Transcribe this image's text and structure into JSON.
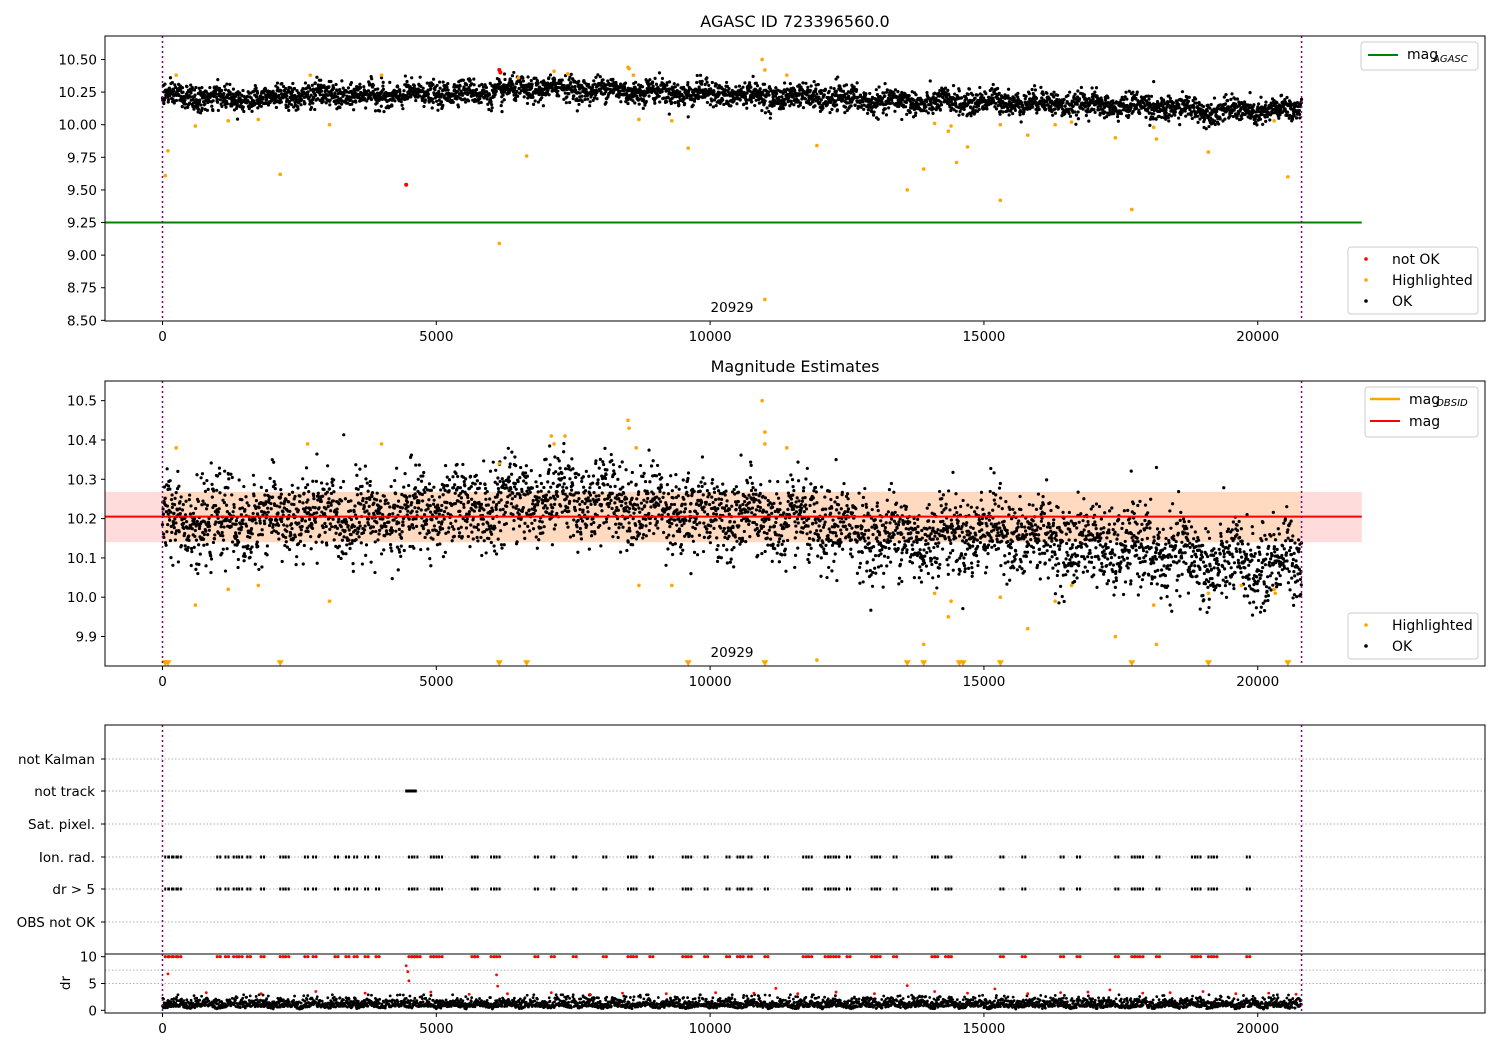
{
  "colors": {
    "ok": "#000000",
    "highlighted": "#ffa500",
    "not_ok": "#ff0000",
    "agasc_line": "#008000",
    "mag_line": "#ff0000",
    "obsid_line": "#ffa500",
    "band": "#ffc0c0",
    "obs_boundary": "#800080",
    "grid": "#b0b0b0"
  },
  "chart_data": [
    {
      "type": "scatter",
      "title": "AGASC ID 723396560.0",
      "xlim": [
        -1050,
        24150
      ],
      "ylim": [
        8.495,
        10.68
      ],
      "x_ticks": [
        0,
        5000,
        10000,
        15000,
        20000
      ],
      "y_ticks": [
        8.5,
        8.75,
        9.0,
        9.25,
        9.5,
        9.75,
        10.0,
        10.25,
        10.5
      ],
      "obs_boundaries": [
        0,
        20800
      ],
      "annotation": {
        "text": "20929",
        "x": 10400
      },
      "lines": [
        {
          "name": "mag",
          "subscript": "AGASC",
          "y": 9.25,
          "x_range": [
            -1050,
            21900
          ]
        }
      ],
      "legend_upper": [
        {
          "label": "mag",
          "subscript": "AGASC"
        }
      ],
      "legend_lower": [
        {
          "label": "not OK",
          "series": "not_ok"
        },
        {
          "label": "Highlighted",
          "series": "highlighted"
        },
        {
          "label": "OK",
          "series": "ok"
        }
      ],
      "trend_ok": [
        [
          0,
          10.22
        ],
        [
          1000,
          10.2
        ],
        [
          2000,
          10.21
        ],
        [
          3000,
          10.23
        ],
        [
          4000,
          10.22
        ],
        [
          5000,
          10.24
        ],
        [
          6000,
          10.25
        ],
        [
          7000,
          10.28
        ],
        [
          8000,
          10.27
        ],
        [
          9000,
          10.25
        ],
        [
          10000,
          10.24
        ],
        [
          11000,
          10.22
        ],
        [
          12000,
          10.21
        ],
        [
          13000,
          10.18
        ],
        [
          14000,
          10.17
        ],
        [
          15000,
          10.18
        ],
        [
          16000,
          10.17
        ],
        [
          17000,
          10.15
        ],
        [
          18000,
          10.14
        ],
        [
          19000,
          10.11
        ],
        [
          20000,
          10.1
        ],
        [
          20800,
          10.12
        ]
      ],
      "ok_outliers": [
        [
          4000,
          10.36
        ],
        [
          6200,
          10.1
        ],
        [
          9600,
          10.06
        ],
        [
          11100,
          10.05
        ],
        [
          11900,
          10.33
        ],
        [
          12300,
          10.35
        ],
        [
          13500,
          10.04
        ],
        [
          18100,
          10.33
        ]
      ],
      "highlighted": [
        [
          50,
          9.61
        ],
        [
          100,
          9.8
        ],
        [
          250,
          10.38
        ],
        [
          600,
          9.99
        ],
        [
          1200,
          10.03
        ],
        [
          1750,
          10.04
        ],
        [
          2150,
          9.62
        ],
        [
          2700,
          10.38
        ],
        [
          3050,
          10.0
        ],
        [
          4000,
          10.38
        ],
        [
          6150,
          9.09
        ],
        [
          6500,
          10.36
        ],
        [
          6650,
          9.76
        ],
        [
          7150,
          10.41
        ],
        [
          7400,
          10.39
        ],
        [
          8500,
          10.44
        ],
        [
          8520,
          10.43
        ],
        [
          8600,
          10.38
        ],
        [
          8700,
          10.04
        ],
        [
          9300,
          10.03
        ],
        [
          9600,
          9.82
        ],
        [
          10950,
          10.5
        ],
        [
          11000,
          10.42
        ],
        [
          11000,
          8.66
        ],
        [
          11400,
          10.38
        ],
        [
          11950,
          9.84
        ],
        [
          13600,
          9.5
        ],
        [
          13900,
          9.66
        ],
        [
          14100,
          10.01
        ],
        [
          14350,
          9.95
        ],
        [
          14400,
          9.99
        ],
        [
          14500,
          9.71
        ],
        [
          14700,
          9.83
        ],
        [
          15300,
          9.42
        ],
        [
          15300,
          10.0
        ],
        [
          15800,
          9.92
        ],
        [
          16300,
          10.0
        ],
        [
          16600,
          10.02
        ],
        [
          17400,
          9.9
        ],
        [
          17700,
          9.35
        ],
        [
          18100,
          9.98
        ],
        [
          18150,
          9.89
        ],
        [
          19100,
          9.79
        ],
        [
          20300,
          10.03
        ],
        [
          20550,
          9.6
        ]
      ],
      "not_ok": [
        [
          4450,
          9.54
        ],
        [
          6150,
          10.42
        ],
        [
          6170,
          10.4
        ]
      ]
    },
    {
      "type": "scatter",
      "title": "Magnitude Estimates",
      "xlim": [
        -1050,
        24150
      ],
      "ylim": [
        9.825,
        10.55
      ],
      "x_ticks": [
        0,
        5000,
        10000,
        15000,
        20000
      ],
      "y_ticks": [
        9.9,
        10.0,
        10.1,
        10.2,
        10.3,
        10.4,
        10.5
      ],
      "obs_boundaries": [
        0,
        20800
      ],
      "annotation": {
        "text": "20929",
        "x": 10400
      },
      "lines": [
        {
          "name": "mag",
          "subscript": "OBSID",
          "y_const": null
        },
        {
          "name": "mag",
          "y": 10.205,
          "x_range": [
            -1050,
            21900
          ]
        }
      ],
      "band": {
        "y_low": 10.14,
        "y_high": 10.268,
        "x_range": [
          -1050,
          21900
        ]
      },
      "legend_upper": [
        {
          "label": "mag",
          "subscript": "OBSID",
          "series": "obsid_line"
        },
        {
          "label": "mag",
          "series": "mag_line"
        }
      ],
      "legend_lower": [
        {
          "label": "Highlighted",
          "series": "highlighted"
        },
        {
          "label": "OK",
          "series": "ok"
        }
      ],
      "trend_ok": [
        [
          0,
          10.2
        ],
        [
          1000,
          10.19
        ],
        [
          2000,
          10.2
        ],
        [
          3000,
          10.21
        ],
        [
          4000,
          10.2
        ],
        [
          5000,
          10.22
        ],
        [
          6000,
          10.23
        ],
        [
          7000,
          10.26
        ],
        [
          8000,
          10.25
        ],
        [
          9000,
          10.23
        ],
        [
          10000,
          10.21
        ],
        [
          11000,
          10.2
        ],
        [
          12000,
          10.18
        ],
        [
          13000,
          10.16
        ],
        [
          14000,
          10.15
        ],
        [
          15000,
          10.17
        ],
        [
          16000,
          10.15
        ],
        [
          17000,
          10.13
        ],
        [
          18000,
          10.12
        ],
        [
          19000,
          10.09
        ],
        [
          20000,
          10.08
        ],
        [
          20800,
          10.1
        ]
      ],
      "ok_outliers": [
        [
          4900,
          10.08
        ],
        [
          6100,
          10.11
        ],
        [
          9650,
          10.06
        ],
        [
          12300,
          10.35
        ],
        [
          13500,
          10.04
        ],
        [
          18150,
          10.33
        ]
      ],
      "highlighted": [
        [
          250,
          10.38
        ],
        [
          600,
          9.98
        ],
        [
          1200,
          10.02
        ],
        [
          1750,
          10.03
        ],
        [
          2650,
          10.39
        ],
        [
          3050,
          9.99
        ],
        [
          4000,
          10.39
        ],
        [
          6150,
          10.34
        ],
        [
          7100,
          10.41
        ],
        [
          7150,
          10.39
        ],
        [
          7350,
          10.41
        ],
        [
          8500,
          10.45
        ],
        [
          8520,
          10.43
        ],
        [
          8650,
          10.38
        ],
        [
          8700,
          10.03
        ],
        [
          9300,
          10.03
        ],
        [
          10950,
          10.5
        ],
        [
          11000,
          10.42
        ],
        [
          11000,
          10.39
        ],
        [
          11400,
          10.38
        ],
        [
          11950,
          9.84
        ],
        [
          13900,
          9.88
        ],
        [
          14100,
          10.01
        ],
        [
          14350,
          9.95
        ],
        [
          14400,
          9.99
        ],
        [
          15300,
          10.0
        ],
        [
          15800,
          9.92
        ],
        [
          16300,
          9.99
        ],
        [
          16600,
          10.03
        ],
        [
          17400,
          9.9
        ],
        [
          18100,
          9.98
        ],
        [
          18150,
          9.88
        ],
        [
          19100,
          10.01
        ],
        [
          19700,
          10.03
        ],
        [
          20300,
          10.02
        ],
        [
          20320,
          10.01
        ]
      ],
      "off_scale_markers": [
        [
          50,
          9.832
        ],
        [
          100,
          9.832
        ],
        [
          2150,
          9.832
        ],
        [
          6150,
          9.832
        ],
        [
          6650,
          9.832
        ],
        [
          9600,
          9.832
        ],
        [
          11000,
          9.832
        ],
        [
          13600,
          9.832
        ],
        [
          13900,
          9.832
        ],
        [
          14550,
          9.832
        ],
        [
          14620,
          9.832
        ],
        [
          15300,
          9.832
        ],
        [
          17700,
          9.832
        ],
        [
          19100,
          9.832
        ],
        [
          20550,
          9.832
        ]
      ]
    },
    {
      "type": "scatter",
      "title": "",
      "xlim": [
        -1050,
        24150
      ],
      "categories": [
        "OBS not OK",
        "dr > 5",
        "Ion. rad.",
        "Sat. pixel.",
        "not track",
        "not Kalman"
      ],
      "obs_boundaries": [
        0,
        20800
      ],
      "flag_x": {
        "Ion. rad.": [
          50,
          120,
          200,
          280,
          1000,
          1150,
          1300,
          1400,
          1550,
          1800,
          2150,
          2250,
          2600,
          2750,
          3150,
          3350,
          3500,
          3700,
          3900,
          4500,
          4600,
          4900,
          4950,
          5050,
          5650,
          5700,
          6000,
          6100,
          6800,
          7100,
          7500,
          8050,
          8500,
          8600,
          8900,
          9500,
          9600,
          9900,
          10300,
          10500,
          10550,
          10700,
          11000,
          11700,
          11800,
          12100,
          12200,
          12300,
          12500,
          12950,
          13050,
          13350,
          14050,
          14100,
          14300,
          14350,
          15300,
          15700,
          16400,
          16700,
          17400,
          17700,
          17750,
          17850,
          18150,
          18800,
          18900,
          19100,
          19200,
          19800
        ],
        "dr > 5": [
          50,
          120,
          200,
          280,
          1000,
          1150,
          1300,
          1400,
          1550,
          1800,
          2150,
          2250,
          2600,
          2750,
          3150,
          3350,
          3500,
          3700,
          3900,
          4500,
          4600,
          4900,
          4950,
          5050,
          5650,
          5700,
          6000,
          6100,
          6800,
          7100,
          7500,
          8050,
          8500,
          8600,
          8900,
          9500,
          9600,
          9900,
          10300,
          10500,
          10550,
          10700,
          11000,
          11700,
          11800,
          12100,
          12200,
          12300,
          12500,
          12950,
          13050,
          13350,
          14050,
          14100,
          14300,
          14350,
          15300,
          15700,
          16400,
          16700,
          17400,
          17700,
          17750,
          17850,
          18150,
          18800,
          18900,
          19100,
          19200,
          19800
        ],
        "not track": [
          4450,
          4480,
          4510,
          4540,
          4570
        ]
      }
    },
    {
      "type": "scatter",
      "title": "",
      "xlim": [
        -1050,
        24150
      ],
      "ylim": [
        -0.5,
        10.5
      ],
      "ylabel": "dr",
      "x_ticks": [
        0,
        5000,
        10000,
        15000,
        20000
      ],
      "y_ticks": [
        0,
        5,
        10
      ],
      "obs_boundaries": [
        0,
        20800
      ],
      "baseline_ok": {
        "y_low": 0.2,
        "y_high": 2.5
      },
      "clipped_red_x": [
        50,
        120,
        200,
        280,
        1000,
        1150,
        1300,
        1400,
        1550,
        1800,
        2150,
        2250,
        2600,
        2750,
        3150,
        3350,
        3500,
        3700,
        3900,
        4500,
        4550,
        4600,
        4650,
        4900,
        4950,
        5050,
        5650,
        5700,
        6000,
        6100,
        6800,
        7100,
        7500,
        8050,
        8500,
        8600,
        8900,
        9500,
        9600,
        9900,
        10300,
        10500,
        10550,
        10700,
        11000,
        11700,
        11800,
        12100,
        12200,
        12300,
        12500,
        12950,
        13050,
        13350,
        14050,
        14100,
        14300,
        14350,
        15300,
        15700,
        16400,
        16700,
        17400,
        17700,
        17750,
        17850,
        18150,
        18800,
        18900,
        19100,
        19200,
        19800
      ],
      "red_points": [
        [
          100,
          6.8
        ],
        [
          4450,
          8.3
        ],
        [
          4480,
          7.2
        ],
        [
          4500,
          5.5
        ],
        [
          6100,
          6.6
        ],
        [
          6120,
          4.5
        ],
        [
          800,
          3.3
        ],
        [
          1800,
          3.1
        ],
        [
          2800,
          3.5
        ],
        [
          3700,
          3.2
        ],
        [
          4900,
          3.4
        ],
        [
          5600,
          3.0
        ],
        [
          6300,
          3.1
        ],
        [
          7100,
          3.3
        ],
        [
          7800,
          3.0
        ],
        [
          8400,
          3.2
        ],
        [
          9200,
          3.1
        ],
        [
          10100,
          3.3
        ],
        [
          10800,
          3.2
        ],
        [
          11200,
          4.1
        ],
        [
          11600,
          3.1
        ],
        [
          12300,
          3.4
        ],
        [
          13000,
          3.1
        ],
        [
          13600,
          4.6
        ],
        [
          14100,
          3.5
        ],
        [
          14700,
          3.2
        ],
        [
          15200,
          4.0
        ],
        [
          15800,
          3.1
        ],
        [
          16400,
          3.3
        ],
        [
          16900,
          3.4
        ],
        [
          17300,
          3.8
        ],
        [
          17900,
          3.2
        ],
        [
          18400,
          3.3
        ],
        [
          19000,
          3.5
        ],
        [
          19600,
          3.1
        ],
        [
          20200,
          3.2
        ],
        [
          20700,
          3.0
        ]
      ]
    }
  ]
}
